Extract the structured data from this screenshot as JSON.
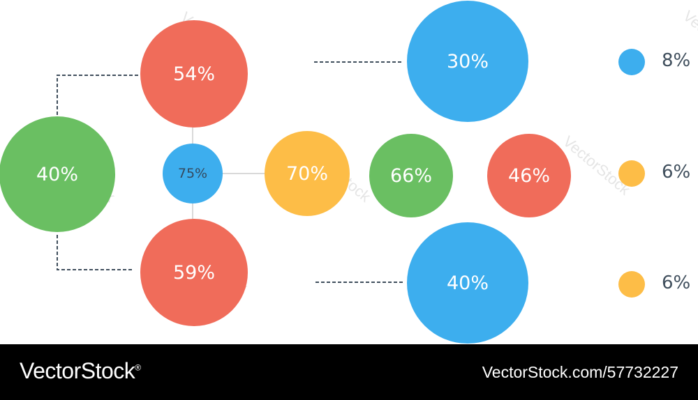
{
  "colors": {
    "green": "#6abf62",
    "red": "#f06c5a",
    "blue": "#3daeee",
    "yellow": "#fdbd47",
    "connector": "#3f4e5c",
    "thin_line": "#d9d9d9"
  },
  "nodes": [
    {
      "id": "left-big",
      "label": "40%",
      "color": "green"
    },
    {
      "id": "top",
      "label": "54%",
      "color": "red"
    },
    {
      "id": "center",
      "label": "75%",
      "color": "blue"
    },
    {
      "id": "bottom",
      "label": "59%",
      "color": "red"
    },
    {
      "id": "mid-yellow",
      "label": "70%",
      "color": "yellow"
    },
    {
      "id": "mid-green",
      "label": "66%",
      "color": "green"
    },
    {
      "id": "mid-red",
      "label": "46%",
      "color": "red"
    },
    {
      "id": "top-right",
      "label": "30%",
      "color": "blue"
    },
    {
      "id": "bottom-right",
      "label": "40%",
      "color": "blue"
    }
  ],
  "legend": [
    {
      "label": "8%",
      "color": "blue"
    },
    {
      "label": "6%",
      "color": "yellow"
    },
    {
      "label": "6%",
      "color": "yellow"
    }
  ],
  "watermark": "VectorStock",
  "footer": {
    "brand": "VectorStock",
    "reg_mark": "®",
    "image_id": "VectorStock.com/57732227"
  }
}
